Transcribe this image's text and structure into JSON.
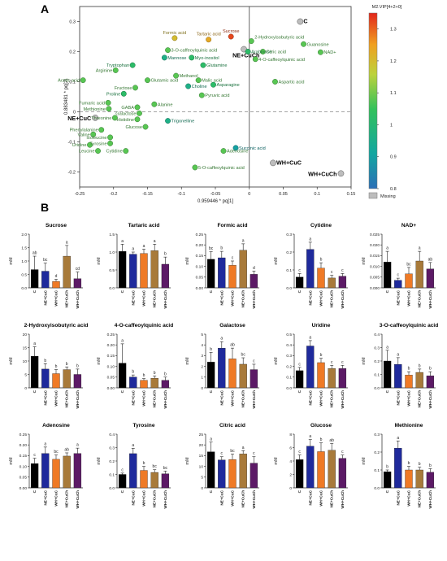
{
  "panels": {
    "a_label": "A",
    "b_label": "B"
  },
  "chart_data": [
    {
      "type": "scatter",
      "panel": "A",
      "xlabel": "0.959446 * pq[1]",
      "ylabel": "0.883481 * pq[2]",
      "xlim": [
        -0.25,
        0.15
      ],
      "ylim": [
        -0.25,
        0.35
      ],
      "xticks": [
        "-0.25",
        "-0.2",
        "-0.15",
        "-0.1",
        "-0.05",
        "0",
        "0.05",
        "0.1",
        "0.15"
      ],
      "yticks": [
        "0.3",
        "0.2",
        "0.1",
        "0",
        "-0.1",
        "-0.2"
      ],
      "colorbar": {
        "title": "M2.VIP[4+2+0]",
        "min": 0.8,
        "max": 1.35,
        "ticks": [
          "1.3",
          "1.2",
          "1.1",
          "1",
          "0.9",
          "0.8"
        ],
        "missing_label": "Missing",
        "stops": [
          "#2c6fb6",
          "#13a6a0",
          "#32c15c",
          "#bcd23c",
          "#f0a020",
          "#e2261c"
        ]
      },
      "points": [
        {
          "label": "C",
          "x": 0.075,
          "y": 0.3,
          "vip": null,
          "group": true
        },
        {
          "label": "NE+CuC",
          "x": -0.227,
          "y": -0.02,
          "vip": null,
          "group": true
        },
        {
          "label": "NE+CuCh",
          "x": -0.008,
          "y": 0.208,
          "vip": null,
          "group": true
        },
        {
          "label": "WH+CuC",
          "x": 0.035,
          "y": -0.17,
          "vip": null,
          "group": true
        },
        {
          "label": "WH+CuCh",
          "x": 0.135,
          "y": -0.205,
          "vip": null,
          "group": true
        },
        {
          "label": "Sucrose",
          "x": -0.027,
          "y": 0.25,
          "vip": 1.32
        },
        {
          "label": "Tartaric acid",
          "x": -0.06,
          "y": 0.24,
          "vip": 1.22
        },
        {
          "label": "Formic acid",
          "x": -0.11,
          "y": 0.245,
          "vip": 1.18
        },
        {
          "label": "2-Hydroxyisobutyric acid",
          "x": 0.003,
          "y": 0.235,
          "vip": 1.05
        },
        {
          "label": "Citric acid",
          "x": 0.02,
          "y": 0.2,
          "vip": 1.05
        },
        {
          "label": "Arabinose",
          "x": -0.002,
          "y": 0.2,
          "vip": 1.0
        },
        {
          "label": "Guanosine",
          "x": 0.08,
          "y": 0.225,
          "vip": 1.05
        },
        {
          "label": "NAD+",
          "x": 0.105,
          "y": 0.198,
          "vip": 1.05
        },
        {
          "label": "4-O-caffeoylquinic acid",
          "x": 0.009,
          "y": 0.175,
          "vip": 1.05
        },
        {
          "label": "3-O-caffeoylquinic acid",
          "x": -0.12,
          "y": 0.205,
          "vip": 1.05
        },
        {
          "label": "Myo-inositol",
          "x": -0.085,
          "y": 0.18,
          "vip": 1.0
        },
        {
          "label": "Mannose",
          "x": -0.125,
          "y": 0.18,
          "vip": 0.95
        },
        {
          "label": "Glutamine",
          "x": -0.068,
          "y": 0.155,
          "vip": 1.0
        },
        {
          "label": "Tryptophan",
          "x": -0.172,
          "y": 0.155,
          "vip": 1.0
        },
        {
          "label": "Arginine",
          "x": -0.197,
          "y": 0.138,
          "vip": 1.05
        },
        {
          "label": "Methanol",
          "x": -0.108,
          "y": 0.12,
          "vip": 1.05
        },
        {
          "label": "Malic acid",
          "x": -0.075,
          "y": 0.105,
          "vip": 1.05
        },
        {
          "label": "Glutamic acid",
          "x": -0.15,
          "y": 0.105,
          "vip": 1.05
        },
        {
          "label": "Acetic acid",
          "x": -0.245,
          "y": 0.105,
          "vip": 1.05
        },
        {
          "label": "Fructose",
          "x": -0.168,
          "y": 0.08,
          "vip": 1.05
        },
        {
          "label": "Choline",
          "x": -0.09,
          "y": 0.085,
          "vip": 0.95
        },
        {
          "label": "Asparagine",
          "x": -0.053,
          "y": 0.09,
          "vip": 1.0
        },
        {
          "label": "Aspartic acid",
          "x": 0.038,
          "y": 0.1,
          "vip": 1.05
        },
        {
          "label": "Proline",
          "x": -0.185,
          "y": 0.06,
          "vip": 1.0
        },
        {
          "label": "Pyruvic acid",
          "x": -0.07,
          "y": 0.055,
          "vip": 1.05
        },
        {
          "label": "Alanine",
          "x": -0.14,
          "y": 0.025,
          "vip": 1.05
        },
        {
          "label": "Fumaric acid",
          "x": -0.208,
          "y": 0.03,
          "vip": 1.05
        },
        {
          "label": "GABA",
          "x": -0.165,
          "y": 0.015,
          "vip": 1.05
        },
        {
          "label": "Methionine",
          "x": -0.207,
          "y": 0.01,
          "vip": 1.05
        },
        {
          "label": "Galactose",
          "x": -0.162,
          "y": -0.005,
          "vip": 1.05
        },
        {
          "label": "Threonine",
          "x": -0.198,
          "y": -0.02,
          "vip": 1.05
        },
        {
          "label": "Histidine",
          "x": -0.165,
          "y": -0.025,
          "vip": 1.05
        },
        {
          "label": "Trigonelline",
          "x": -0.12,
          "y": -0.03,
          "vip": 0.95
        },
        {
          "label": "Glucose",
          "x": -0.153,
          "y": -0.05,
          "vip": 1.05
        },
        {
          "label": "Phenylalanine",
          "x": -0.218,
          "y": -0.06,
          "vip": 1.05
        },
        {
          "label": "Valine",
          "x": -0.23,
          "y": -0.075,
          "vip": 1.05
        },
        {
          "label": "Isoleucine",
          "x": -0.205,
          "y": -0.085,
          "vip": 1.05
        },
        {
          "label": "Uridine",
          "x": -0.235,
          "y": -0.11,
          "vip": 1.05
        },
        {
          "label": "Tyrosine",
          "x": -0.205,
          "y": -0.105,
          "vip": 1.05
        },
        {
          "label": "Leucine",
          "x": -0.223,
          "y": -0.13,
          "vip": 1.05
        },
        {
          "label": "Cytidine",
          "x": -0.182,
          "y": -0.13,
          "vip": 1.05
        },
        {
          "label": "Succinic acid",
          "x": -0.02,
          "y": -0.12,
          "vip": 0.9
        },
        {
          "label": "Adenosine",
          "x": -0.038,
          "y": -0.13,
          "vip": 1.05
        },
        {
          "label": "5-O-caffeoylquinic acid",
          "x": -0.08,
          "y": -0.185,
          "vip": 1.05
        }
      ]
    },
    {
      "type": "bar",
      "panel": "B",
      "categories": [
        "C",
        "NE+CuC",
        "WH+CuC",
        "NE+CuCh",
        "WH+CuCh"
      ],
      "colors": [
        "#000000",
        "#1f2a9c",
        "#ef7a26",
        "#a87a3a",
        "#5c1a66"
      ],
      "ylabel": "mM",
      "charts": [
        {
          "title": "Sucrose",
          "ylim": [
            0,
            2.0
          ],
          "yticks": [
            "0.0",
            "0.5",
            "1.0",
            "1.5",
            "2.0"
          ],
          "values": [
            0.68,
            0.62,
            0.24,
            1.18,
            0.34
          ],
          "errors": [
            0.5,
            0.3,
            0.08,
            0.4,
            0.25
          ],
          "letters": [
            "ab",
            "bc",
            "d",
            "a",
            "cd"
          ]
        },
        {
          "title": "Tartaric acid",
          "ylim": [
            0,
            1.5
          ],
          "yticks": [
            "0.0",
            "0.5",
            "1.0",
            "1.5"
          ],
          "values": [
            1.02,
            0.94,
            0.96,
            1.04,
            0.66
          ],
          "errors": [
            0.2,
            0.06,
            0.12,
            0.18,
            0.2
          ],
          "letters": [
            "a",
            "a",
            "a",
            "a",
            "b"
          ]
        },
        {
          "title": "Formic acid",
          "ylim": [
            0,
            0.25
          ],
          "yticks": [
            "0.00",
            "0.05",
            "0.10",
            "0.15",
            "0.20",
            "0.25"
          ],
          "values": [
            0.133,
            0.14,
            0.105,
            0.175,
            0.063
          ],
          "errors": [
            0.035,
            0.03,
            0.02,
            0.03,
            0.015
          ],
          "letters": [
            "bc",
            "b",
            "c",
            "a",
            "d"
          ]
        },
        {
          "title": "Cytidine",
          "ylim": [
            0,
            0.3
          ],
          "yticks": [
            "0.0",
            "0.1",
            "0.2",
            "0.3"
          ],
          "values": [
            0.06,
            0.215,
            0.11,
            0.055,
            0.065
          ],
          "errors": [
            0.02,
            0.04,
            0.03,
            0.015,
            0.015
          ],
          "letters": [
            "c",
            "a",
            "b",
            "c",
            "c"
          ]
        },
        {
          "title": "NAD+",
          "ylim": [
            0,
            0.025
          ],
          "yticks": [
            "0.000",
            "0.005",
            "0.010",
            "0.015",
            "0.020",
            "0.025"
          ],
          "values": [
            0.012,
            0.0035,
            0.0065,
            0.0125,
            0.0088
          ],
          "errors": [
            0.005,
            0.001,
            0.003,
            0.0045,
            0.003
          ],
          "letters": [
            "a",
            "c",
            "bc",
            "a",
            "ab"
          ]
        },
        {
          "title": "2-Hydroxyisobutyric acid",
          "ylim": [
            0,
            20
          ],
          "yticks": [
            "0",
            "5",
            "10",
            "15",
            "20"
          ],
          "values": [
            11.8,
            7.0,
            5.3,
            6.8,
            5.0
          ],
          "errors": [
            3.5,
            2.0,
            1.5,
            1.0,
            2.0
          ],
          "letters": [
            "a",
            "b",
            "b",
            "b",
            "b"
          ]
        },
        {
          "title": "4-O-caffeoylquinic acid",
          "ylim": [
            0,
            0.25
          ],
          "yticks": [
            "0.00",
            "0.05",
            "0.10",
            "0.15",
            "0.20",
            "0.25"
          ],
          "values": [
            0.115,
            0.05,
            0.035,
            0.045,
            0.035
          ],
          "errors": [
            0.09,
            0.01,
            0.008,
            0.01,
            0.015
          ],
          "letters": [
            "a",
            "b",
            "b",
            "b",
            "b"
          ]
        },
        {
          "title": "Galactose",
          "ylim": [
            0,
            5
          ],
          "yticks": [
            "0",
            "1",
            "2",
            "3",
            "4",
            "5"
          ],
          "values": [
            2.4,
            3.7,
            2.7,
            2.2,
            1.7
          ],
          "errors": [
            0.9,
            0.6,
            1.0,
            0.6,
            0.5
          ],
          "letters": [
            "b",
            "a",
            "ab",
            "bc",
            "c"
          ]
        },
        {
          "title": "Uridine",
          "ylim": [
            0,
            0.5
          ],
          "yticks": [
            "0.0",
            "0.1",
            "0.2",
            "0.3",
            "0.4",
            "0.5"
          ],
          "values": [
            0.16,
            0.39,
            0.235,
            0.18,
            0.18
          ],
          "errors": [
            0.03,
            0.05,
            0.04,
            0.03,
            0.03
          ],
          "letters": [
            "c",
            "a",
            "b",
            "c",
            "c"
          ]
        },
        {
          "title": "3-O-caffeoylquinic acid",
          "ylim": [
            0,
            0.4
          ],
          "yticks": [
            "0.0",
            "0.1",
            "0.2",
            "0.3",
            "0.4"
          ],
          "values": [
            0.2,
            0.175,
            0.095,
            0.115,
            0.09
          ],
          "errors": [
            0.08,
            0.05,
            0.025,
            0.025,
            0.03
          ],
          "letters": [
            "a",
            "a",
            "b",
            "b",
            "b"
          ]
        },
        {
          "title": "Adenosine",
          "ylim": [
            0,
            0.25
          ],
          "yticks": [
            "0.00",
            "0.05",
            "0.10",
            "0.15",
            "0.20",
            "0.25"
          ],
          "values": [
            0.113,
            0.16,
            0.133,
            0.148,
            0.16
          ],
          "errors": [
            0.025,
            0.03,
            0.02,
            0.015,
            0.025
          ],
          "letters": [
            "c",
            "a",
            "bc",
            "ab",
            "a"
          ]
        },
        {
          "title": "Tyrosine",
          "ylim": [
            0,
            0.4
          ],
          "yticks": [
            "0.0",
            "0.1",
            "0.2",
            "0.3",
            "0.4"
          ],
          "values": [
            0.1,
            0.255,
            0.13,
            0.115,
            0.105
          ],
          "errors": [
            0.01,
            0.04,
            0.03,
            0.02,
            0.02
          ],
          "letters": [
            "c",
            "a",
            "b",
            "bc",
            "bc"
          ]
        },
        {
          "title": "Citric acid",
          "ylim": [
            0,
            25
          ],
          "yticks": [
            "0",
            "5",
            "10",
            "15",
            "20",
            "25"
          ],
          "values": [
            16.8,
            13.0,
            13.2,
            15.8,
            11.5
          ],
          "errors": [
            4.5,
            1.5,
            2.5,
            1.5,
            3.0
          ],
          "letters": [
            "a",
            "c",
            "bc",
            "a",
            "c"
          ]
        },
        {
          "title": "Glucose",
          "ylim": [
            0,
            8
          ],
          "yticks": [
            "0",
            "2",
            "4",
            "6",
            "8"
          ],
          "values": [
            4.2,
            6.2,
            5.4,
            5.6,
            4.4
          ],
          "errors": [
            0.7,
            1.0,
            1.3,
            1.0,
            0.5
          ],
          "letters": [
            "c",
            "a",
            "b",
            "ab",
            "c"
          ]
        },
        {
          "title": "Methionine",
          "ylim": [
            0,
            0.3
          ],
          "yticks": [
            "0.0",
            "0.1",
            "0.2",
            "0.3"
          ],
          "values": [
            0.09,
            0.222,
            0.1,
            0.1,
            0.087
          ],
          "errors": [
            0.01,
            0.04,
            0.02,
            0.015,
            0.02
          ],
          "letters": [
            "b",
            "a",
            "b",
            "b",
            "b"
          ]
        }
      ]
    }
  ]
}
